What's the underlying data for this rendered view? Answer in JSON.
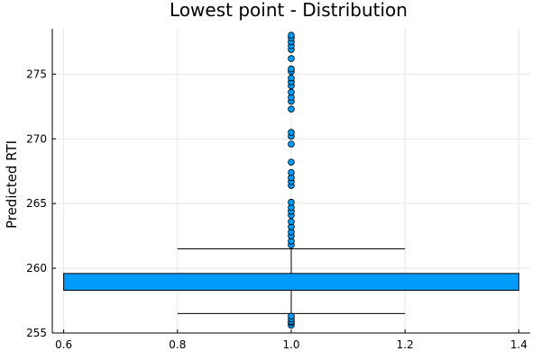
{
  "chart_data": {
    "type": "box",
    "title": "Lowest point - Distribution",
    "xlabel": "",
    "ylabel": "Predicted RTI",
    "xlim": [
      0.58,
      1.42
    ],
    "ylim": [
      255,
      278.5
    ],
    "xticks": [
      0.6,
      0.8,
      1.0,
      1.2,
      1.4
    ],
    "xtick_labels": [
      "0.6",
      "0.8",
      "1.0",
      "1.2",
      "1.4"
    ],
    "yticks": [
      255,
      260,
      265,
      270,
      275
    ],
    "ytick_labels": [
      "255",
      "260",
      "265",
      "270",
      "275"
    ],
    "grid": true,
    "legend": "none",
    "color": "#009AF9",
    "box": {
      "x": 1.0,
      "x_left": 0.6,
      "x_right": 1.4,
      "q1": 258.3,
      "median": 258.9,
      "q3": 259.6,
      "whisker_low": 256.5,
      "whisker_high": 261.5,
      "whisker_left": 0.8,
      "whisker_right": 1.2
    },
    "outliers": {
      "x": 1.0,
      "values": [
        255.6,
        255.8,
        255.9,
        256.1,
        256.3,
        261.8,
        262.1,
        262.5,
        262.8,
        263.2,
        263.6,
        264.1,
        264.4,
        264.7,
        265.1,
        266.4,
        266.7,
        267.0,
        267.4,
        268.2,
        269.6,
        270.2,
        270.5,
        272.3,
        272.9,
        273.2,
        273.6,
        274.1,
        274.4,
        274.7,
        275.2,
        275.4,
        276.2,
        276.9,
        277.2,
        277.5,
        277.8,
        278.0
      ]
    }
  }
}
